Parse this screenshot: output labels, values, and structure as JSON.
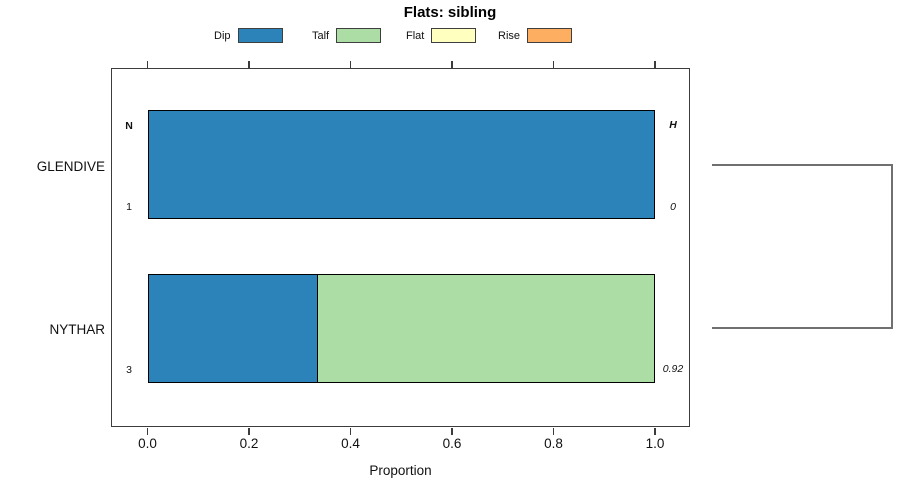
{
  "title": "Flats: sibling",
  "xlabel": "Proportion",
  "categories": {
    "row1": "GLENDIVE",
    "row2": "NYTHAR"
  },
  "annotations": {
    "left_header": "N",
    "right_header": "H",
    "row1_left": "1",
    "row1_right": "0",
    "row2_left": "3",
    "row2_right": "0.92"
  },
  "chart_data": {
    "type": "bar",
    "orientation": "horizontal",
    "stacked": true,
    "title": "Flats: sibling",
    "xlabel": "Proportion",
    "xlim": [
      0,
      1
    ],
    "x_ticks": [
      "0.0",
      "0.2",
      "0.4",
      "0.6",
      "0.8",
      "1.0"
    ],
    "grid": false,
    "legend_position": "top",
    "categories": [
      "GLENDIVE",
      "NYTHAR"
    ],
    "series": [
      {
        "name": "Dip",
        "color": "#2B83BA",
        "values": [
          1.0,
          0.333
        ]
      },
      {
        "name": "Talf",
        "color": "#ABDDA4",
        "values": [
          0.0,
          0.667
        ]
      },
      {
        "name": "Flat",
        "color": "#FFFFBF",
        "values": [
          0.0,
          0.0
        ]
      },
      {
        "name": "Rise",
        "color": "#FDAE61",
        "values": [
          0.0,
          0.0
        ]
      }
    ],
    "row_annotations": {
      "left_header": "N",
      "right_header": "H",
      "counts": [
        1,
        3
      ],
      "entropy": [
        0,
        0.92
      ]
    },
    "dendrogram": {
      "present": true,
      "side": "right",
      "description": "bracket joining GLENDIVE and NYTHAR row centers, merging at far right"
    }
  },
  "colors": {
    "dip": "#2B83BA",
    "talf": "#ABDDA4",
    "flat": "#FFFFBF",
    "rise": "#FDAE61",
    "bar_border": "#000000",
    "axis": "#3c3c3c",
    "dendrogram": "#707070"
  }
}
